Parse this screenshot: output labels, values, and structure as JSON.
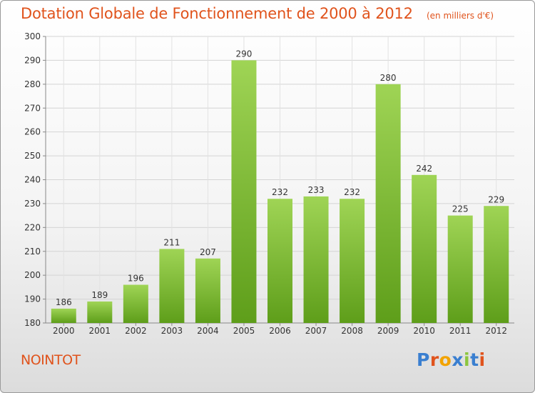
{
  "header": {
    "title": "Dotation Globale de Fonctionnement de 2000 à 2012",
    "subtitle": "(en milliers d'€)"
  },
  "footer": {
    "commune": "NOINTOT",
    "logo_text": "Proxiti",
    "logo_colors": [
      "#3a7fd0",
      "#e0531c",
      "#f2a300",
      "#3a7fd0",
      "#8cc63f",
      "#3a7fd0",
      "#e0531c"
    ]
  },
  "colors": {
    "bar_top": "#9fd455",
    "bar_bottom": "#5e9e1a",
    "text": "#333333",
    "accent": "#e0531c"
  },
  "chart_data": {
    "type": "bar",
    "title": "Dotation Globale de Fonctionnement de 2000 à 2012",
    "subtitle": "(en milliers d'€)",
    "categories": [
      "2000",
      "2001",
      "2002",
      "2003",
      "2004",
      "2005",
      "2006",
      "2007",
      "2008",
      "2009",
      "2010",
      "2011",
      "2012"
    ],
    "values": [
      186,
      189,
      196,
      211,
      207,
      290,
      232,
      233,
      232,
      280,
      242,
      225,
      229
    ],
    "ylim": [
      180,
      300
    ],
    "yticks": [
      180,
      190,
      200,
      210,
      220,
      230,
      240,
      250,
      260,
      270,
      280,
      290,
      300
    ],
    "grid": true,
    "data_labels": true
  }
}
